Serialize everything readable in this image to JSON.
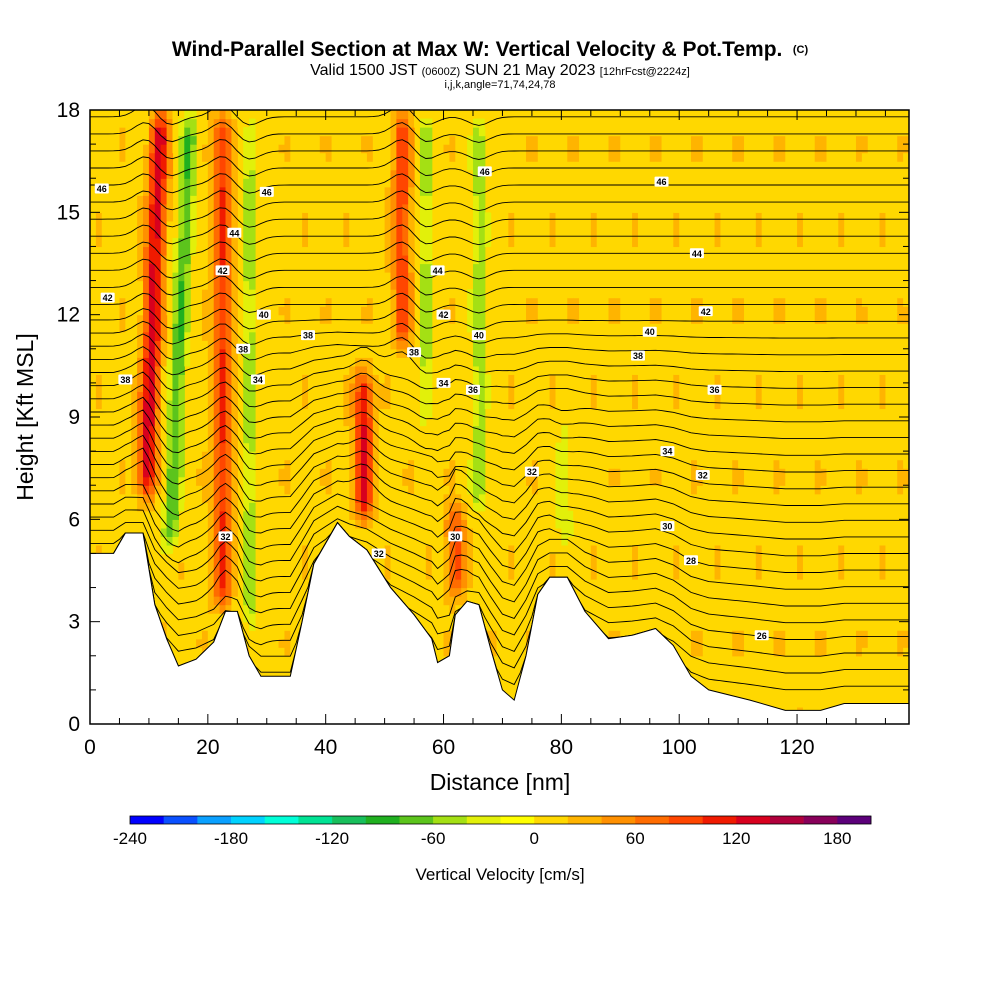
{
  "chart_data": {
    "type": "heatmap",
    "title": "Wind-Parallel Section at Max W: Vertical Velocity & Pot.Temp.",
    "title_unit": "(C)",
    "subtitle_parts": [
      "Valid 1500 JST ",
      "(0600Z)",
      " SUN 21 May 2023 ",
      "[12hrFcst@2224z]"
    ],
    "subtitle2": "i,j,k,angle=71,74,24,78",
    "xlabel": "Distance [nm]",
    "ylabel": "Height [Kft MSL]",
    "xlim": [
      0,
      139
    ],
    "ylim": [
      0,
      18
    ],
    "x_ticks": [
      0,
      20,
      40,
      60,
      80,
      100,
      120
    ],
    "y_ticks": [
      0,
      3,
      6,
      9,
      12,
      15,
      18
    ],
    "colorbar": {
      "label": "Vertical Velocity [cm/s]",
      "min": -240,
      "max": 200,
      "step": 20,
      "ticks": [
        -240,
        -180,
        -120,
        -60,
        0,
        60,
        120,
        180
      ],
      "colors": [
        "#0000ff",
        "#0a50ff",
        "#0aa0ff",
        "#00d2ff",
        "#00ffd8",
        "#00e394",
        "#18bf5c",
        "#20b020",
        "#5cc41c",
        "#a4e014",
        "#e2f00a",
        "#ffff00",
        "#ffd800",
        "#ffb400",
        "#ff9000",
        "#ff6c00",
        "#ff4600",
        "#f01a00",
        "#d8001e",
        "#b0003c",
        "#88005a",
        "#5c007a"
      ]
    },
    "terrain_top_kft": [
      [
        0,
        5.0
      ],
      [
        4,
        5.0
      ],
      [
        6,
        5.6
      ],
      [
        9,
        5.6
      ],
      [
        11,
        3.5
      ],
      [
        13,
        2.5
      ],
      [
        15,
        1.7
      ],
      [
        18,
        1.9
      ],
      [
        21,
        2.4
      ],
      [
        23,
        3.3
      ],
      [
        25,
        3.3
      ],
      [
        27,
        2.0
      ],
      [
        29,
        1.4
      ],
      [
        34,
        1.4
      ],
      [
        36,
        3.0
      ],
      [
        38,
        4.7
      ],
      [
        42,
        5.9
      ],
      [
        44,
        5.5
      ],
      [
        47,
        5.1
      ],
      [
        51,
        4.0
      ],
      [
        55,
        3.2
      ],
      [
        58,
        2.5
      ],
      [
        59,
        1.8
      ],
      [
        61,
        2.0
      ],
      [
        62,
        3.2
      ],
      [
        64,
        3.6
      ],
      [
        66,
        3.5
      ],
      [
        68,
        2.2
      ],
      [
        70,
        1.0
      ],
      [
        72,
        0.7
      ],
      [
        74,
        2.0
      ],
      [
        76,
        3.8
      ],
      [
        78,
        4.3
      ],
      [
        81,
        4.3
      ],
      [
        84,
        3.3
      ],
      [
        88,
        2.5
      ],
      [
        92,
        2.6
      ],
      [
        96,
        2.8
      ],
      [
        99,
        2.3
      ],
      [
        102,
        1.4
      ],
      [
        105,
        1.0
      ],
      [
        112,
        0.7
      ],
      [
        118,
        0.4
      ],
      [
        124,
        0.4
      ],
      [
        128,
        0.6
      ],
      [
        139,
        0.6
      ]
    ],
    "vertical_velocity_features": [
      {
        "x": 9.5,
        "bottom": 6.5,
        "top": 18,
        "tilt": 2.5,
        "w": 120
      },
      {
        "x": 13.5,
        "bottom": 5.0,
        "top": 18,
        "tilt": 3.5,
        "w": -90
      },
      {
        "x": 22.5,
        "bottom": 3.3,
        "top": 18,
        "tilt": 0,
        "w": 90
      },
      {
        "x": 27.0,
        "bottom": 2.5,
        "top": 18,
        "tilt": 0,
        "w": -60
      },
      {
        "x": 46.5,
        "bottom": 5.9,
        "top": 10.5,
        "tilt": 0,
        "w": 110
      },
      {
        "x": 53.0,
        "bottom": 11.0,
        "top": 18,
        "tilt": 0,
        "w": 80
      },
      {
        "x": 57.0,
        "bottom": 8.5,
        "top": 18,
        "tilt": 0,
        "w": -60
      },
      {
        "x": 62.0,
        "bottom": 3.6,
        "top": 6.5,
        "tilt": 0,
        "w": 80
      },
      {
        "x": 66.0,
        "bottom": 6.0,
        "top": 18,
        "tilt": 0,
        "w": -60
      },
      {
        "x": 80.5,
        "bottom": 5.0,
        "top": 9.0,
        "tilt": 0,
        "w": -50
      }
    ],
    "isentrope_labels": [
      {
        "text": "46",
        "x": 2,
        "y": 15.7
      },
      {
        "text": "42",
        "x": 3,
        "y": 12.5
      },
      {
        "text": "38",
        "x": 6,
        "y": 10.1
      },
      {
        "text": "44",
        "x": 24.5,
        "y": 14.4
      },
      {
        "text": "42",
        "x": 22.5,
        "y": 13.3
      },
      {
        "text": "46",
        "x": 30,
        "y": 15.6
      },
      {
        "text": "40",
        "x": 29.5,
        "y": 12.0
      },
      {
        "text": "38",
        "x": 26,
        "y": 11.0
      },
      {
        "text": "34",
        "x": 28.5,
        "y": 10.1
      },
      {
        "text": "38",
        "x": 37,
        "y": 11.4
      },
      {
        "text": "44",
        "x": 59,
        "y": 13.3
      },
      {
        "text": "46",
        "x": 67,
        "y": 16.2
      },
      {
        "text": "42",
        "x": 60,
        "y": 12.0
      },
      {
        "text": "40",
        "x": 66,
        "y": 11.4
      },
      {
        "text": "38",
        "x": 55,
        "y": 10.9
      },
      {
        "text": "34",
        "x": 60,
        "y": 10.0
      },
      {
        "text": "36",
        "x": 65,
        "y": 9.8
      },
      {
        "text": "32",
        "x": 75,
        "y": 7.4
      },
      {
        "text": "46",
        "x": 97,
        "y": 15.9
      },
      {
        "text": "44",
        "x": 103,
        "y": 13.8
      },
      {
        "text": "42",
        "x": 104.5,
        "y": 12.1
      },
      {
        "text": "40",
        "x": 95,
        "y": 11.5
      },
      {
        "text": "38",
        "x": 93,
        "y": 10.8
      },
      {
        "text": "36",
        "x": 106,
        "y": 9.8
      },
      {
        "text": "34",
        "x": 98,
        "y": 8.0
      },
      {
        "text": "32",
        "x": 104,
        "y": 7.3
      },
      {
        "text": "30",
        "x": 98,
        "y": 5.8
      },
      {
        "text": "28",
        "x": 102,
        "y": 4.8
      },
      {
        "text": "26",
        "x": 114,
        "y": 2.6
      },
      {
        "text": "32",
        "x": 23,
        "y": 5.5
      },
      {
        "text": "32",
        "x": 49,
        "y": 5.0
      },
      {
        "text": "30",
        "x": 62,
        "y": 5.5
      }
    ]
  }
}
